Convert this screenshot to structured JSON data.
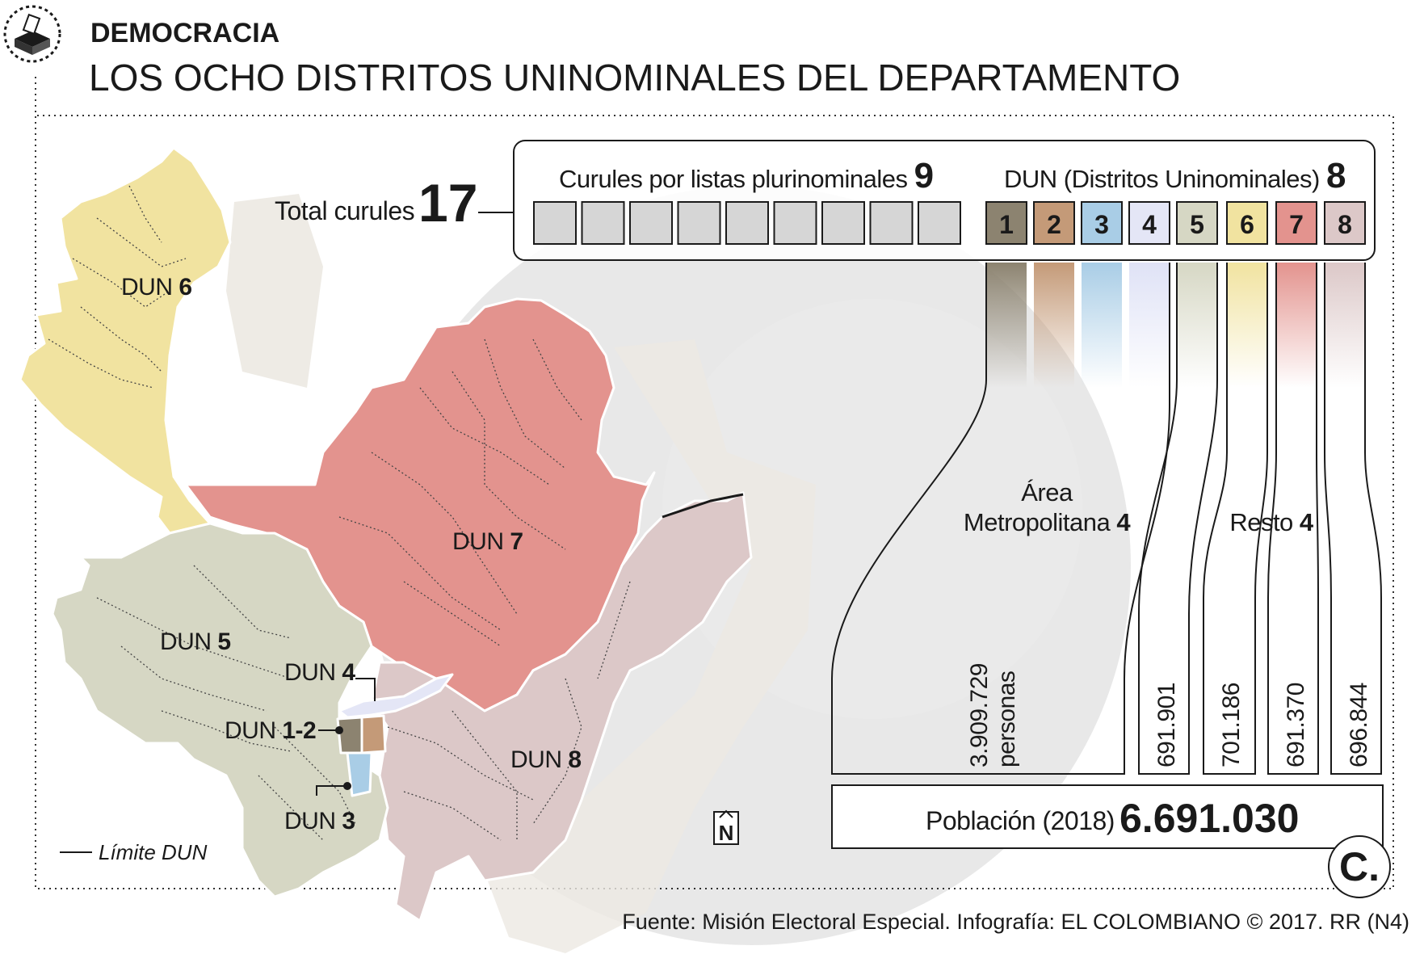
{
  "header": {
    "section": "DEMOCRACIA",
    "title": "LOS OCHO DISTRITOS UNINOMINALES DEL DEPARTAMENTO"
  },
  "totals": {
    "total_label": "Total curules",
    "total_value": "17",
    "plurinominal_label": "Curules por listas plurinominales",
    "plurinominal_value": "9",
    "dun_label": "DUN (Distritos Uninominales)",
    "dun_value": "8"
  },
  "districts": [
    {
      "num": "1",
      "color": "#8c8370"
    },
    {
      "num": "2",
      "color": "#c49a78"
    },
    {
      "num": "3",
      "color": "#a9cde6"
    },
    {
      "num": "4",
      "color": "#e4e6f6"
    },
    {
      "num": "5",
      "color": "#d6d7c4"
    },
    {
      "num": "6",
      "color": "#f1e3a0"
    },
    {
      "num": "7",
      "color": "#e3938e"
    },
    {
      "num": "8",
      "color": "#dcc8c8"
    }
  ],
  "map_labels": {
    "dun6": {
      "prefix": "DUN",
      "num": "6"
    },
    "dun7": {
      "prefix": "DUN",
      "num": "7"
    },
    "dun5": {
      "prefix": "DUN",
      "num": "5"
    },
    "dun4": {
      "prefix": "DUN",
      "num": "4"
    },
    "dun12": {
      "prefix": "DUN",
      "num": "1-2"
    },
    "dun3": {
      "prefix": "DUN",
      "num": "3"
    },
    "dun8": {
      "prefix": "DUN",
      "num": "8"
    }
  },
  "groups": {
    "metro_line1": "Área",
    "metro_line2": "Metropolitana",
    "metro_value": "4",
    "resto_label": "Resto",
    "resto_value": "4"
  },
  "population": {
    "metro_value": "3.909.729",
    "metro_unit": "personas",
    "dun5": "691.901",
    "dun6": "701.186",
    "dun7": "691.370",
    "dun8": "696.844",
    "total_label": "Población (2018)",
    "total_value": "6.691.030"
  },
  "legend": {
    "limit_label": "Límite DUN"
  },
  "north_symbol": "N",
  "logo_letter": "C.",
  "source": "Fuente: Misión Electoral Especial. Infografía: EL COLOMBIANO © 2017. RR (N4)"
}
